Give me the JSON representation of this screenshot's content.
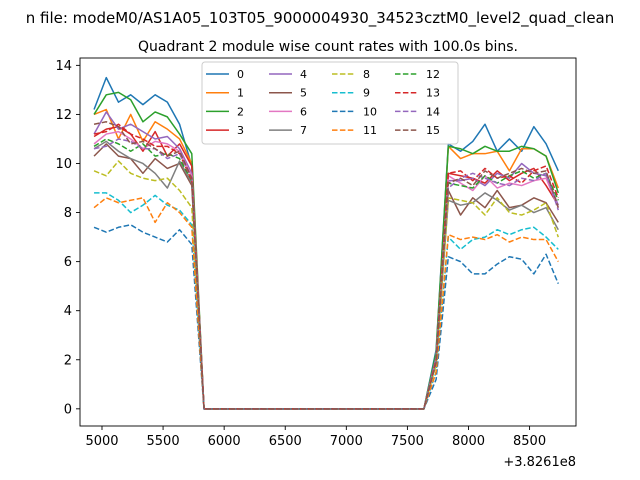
{
  "suptitle": "n file: modeM0/AS1A05_103T05_9000004930_34523cztM0_level2_quad_clean",
  "chart_data": {
    "type": "line",
    "title": "Quadrant 2 module wise count rates with 100.0s bins.",
    "xlabel": "",
    "ylabel": "",
    "x_offset_label": "+3.8261e8",
    "xlim": [
      4820,
      8880
    ],
    "ylim": [
      -0.7,
      14.3
    ],
    "xticks": [
      5000,
      5500,
      6000,
      6500,
      7000,
      7500,
      8000,
      8500
    ],
    "yticks": [
      0,
      2,
      4,
      6,
      8,
      10,
      12,
      14
    ],
    "grid": false,
    "legend": {
      "placement": "top-center",
      "columns": 4
    },
    "x": [
      4935,
      5035,
      5135,
      5235,
      5335,
      5435,
      5535,
      5635,
      5735,
      5835,
      5935,
      6035,
      6135,
      6235,
      6335,
      6435,
      6535,
      6635,
      6735,
      6835,
      6935,
      7035,
      7135,
      7235,
      7335,
      7435,
      7535,
      7635,
      7735,
      7835,
      7935,
      8035,
      8135,
      8235,
      8335,
      8435,
      8535,
      8635,
      8735
    ],
    "series": [
      {
        "name": "0",
        "color": "#1f77b4",
        "dash": "solid",
        "values": [
          12.2,
          13.5,
          12.5,
          12.8,
          12.4,
          12.8,
          12.5,
          11.6,
          9.9,
          0,
          0,
          0,
          0,
          0,
          0,
          0,
          0,
          0,
          0,
          0,
          0,
          0,
          0,
          0,
          0,
          0,
          0,
          0,
          2.4,
          10.8,
          10.5,
          10.9,
          11.6,
          10.5,
          11.0,
          10.5,
          11.5,
          10.8,
          9.7
        ]
      },
      {
        "name": "1",
        "color": "#ff7f0e",
        "dash": "solid",
        "values": [
          12.0,
          12.2,
          11.0,
          12.0,
          10.9,
          11.7,
          11.4,
          11.0,
          10.0,
          0,
          0,
          0,
          0,
          0,
          0,
          0,
          0,
          0,
          0,
          0,
          0,
          0,
          0,
          0,
          0,
          0,
          0,
          0,
          2.2,
          10.7,
          10.2,
          10.4,
          10.4,
          10.5,
          9.7,
          10.6,
          10.6,
          10.3,
          9.0
        ]
      },
      {
        "name": "2",
        "color": "#2ca02c",
        "dash": "solid",
        "values": [
          12.0,
          12.8,
          12.9,
          12.6,
          11.7,
          12.1,
          11.9,
          11.2,
          10.4,
          0,
          0,
          0,
          0,
          0,
          0,
          0,
          0,
          0,
          0,
          0,
          0,
          0,
          0,
          0,
          0,
          0,
          0,
          0,
          2.3,
          10.7,
          10.6,
          10.4,
          10.7,
          10.5,
          10.5,
          10.7,
          10.6,
          10.3,
          8.8
        ]
      },
      {
        "name": "3",
        "color": "#d62728",
        "dash": "solid",
        "values": [
          11.1,
          11.4,
          11.5,
          11.2,
          10.5,
          11.3,
          10.3,
          10.8,
          9.9,
          0,
          0,
          0,
          0,
          0,
          0,
          0,
          0,
          0,
          0,
          0,
          0,
          0,
          0,
          0,
          0,
          0,
          0,
          0,
          2.0,
          9.6,
          9.5,
          9.4,
          9.2,
          9.7,
          9.3,
          9.6,
          9.8,
          9.1,
          8.3
        ]
      },
      {
        "name": "4",
        "color": "#9467bd",
        "dash": "solid",
        "values": [
          11.2,
          12.1,
          11.4,
          11.6,
          11.3,
          11.0,
          11.1,
          10.6,
          9.6,
          0,
          0,
          0,
          0,
          0,
          0,
          0,
          0,
          0,
          0,
          0,
          0,
          0,
          0,
          0,
          0,
          0,
          0,
          0,
          2.1,
          9.3,
          9.3,
          9.4,
          9.1,
          9.6,
          9.4,
          10.0,
          9.6,
          9.5,
          8.3
        ]
      },
      {
        "name": "5",
        "color": "#8c564b",
        "dash": "solid",
        "values": [
          10.3,
          10.8,
          10.3,
          10.2,
          9.6,
          10.2,
          9.8,
          10.0,
          9.1,
          0,
          0,
          0,
          0,
          0,
          0,
          0,
          0,
          0,
          0,
          0,
          0,
          0,
          0,
          0,
          0,
          0,
          0,
          0,
          1.9,
          8.9,
          7.9,
          8.6,
          8.2,
          8.9,
          8.2,
          8.3,
          8.6,
          8.4,
          7.6
        ]
      },
      {
        "name": "6",
        "color": "#e377c2",
        "dash": "solid",
        "values": [
          10.8,
          11.2,
          11.3,
          11.0,
          10.6,
          10.9,
          10.8,
          10.5,
          9.5,
          0,
          0,
          0,
          0,
          0,
          0,
          0,
          0,
          0,
          0,
          0,
          0,
          0,
          0,
          0,
          0,
          0,
          0,
          0,
          2.0,
          9.5,
          9.2,
          8.9,
          9.5,
          9.0,
          9.2,
          9.1,
          9.3,
          9.4,
          8.2
        ]
      },
      {
        "name": "7",
        "color": "#7f7f7f",
        "dash": "solid",
        "values": [
          10.6,
          10.9,
          10.5,
          10.2,
          10.0,
          9.6,
          9.0,
          10.1,
          9.2,
          0,
          0,
          0,
          0,
          0,
          0,
          0,
          0,
          0,
          0,
          0,
          0,
          0,
          0,
          0,
          0,
          0,
          0,
          0,
          1.9,
          8.5,
          8.3,
          8.4,
          8.8,
          8.5,
          8.1,
          8.3,
          8.0,
          8.2,
          7.3
        ]
      },
      {
        "name": "8",
        "color": "#bcbd22",
        "dash": "dashed",
        "values": [
          9.7,
          9.5,
          10.1,
          9.6,
          9.4,
          9.3,
          9.4,
          8.9,
          8.2,
          0,
          0,
          0,
          0,
          0,
          0,
          0,
          0,
          0,
          0,
          0,
          0,
          0,
          0,
          0,
          0,
          0,
          0,
          0,
          1.8,
          8.6,
          8.5,
          8.4,
          7.9,
          8.6,
          8.0,
          7.9,
          8.1,
          8.4,
          7.0
        ]
      },
      {
        "name": "9",
        "color": "#17becf",
        "dash": "dashed",
        "values": [
          8.8,
          8.8,
          8.5,
          8.0,
          8.3,
          8.7,
          8.3,
          8.1,
          7.5,
          0,
          0,
          0,
          0,
          0,
          0,
          0,
          0,
          0,
          0,
          0,
          0,
          0,
          0,
          0,
          0,
          0,
          0,
          0,
          1.5,
          7.0,
          6.5,
          6.9,
          7.0,
          7.3,
          7.1,
          7.3,
          7.4,
          7.0,
          6.5
        ]
      },
      {
        "name": "10",
        "color": "#1f77b4",
        "dash": "dashed",
        "values": [
          7.4,
          7.2,
          7.4,
          7.5,
          7.2,
          7.0,
          6.8,
          7.3,
          6.7,
          0,
          0,
          0,
          0,
          0,
          0,
          0,
          0,
          0,
          0,
          0,
          0,
          0,
          0,
          0,
          0,
          0,
          0,
          0,
          1.2,
          6.2,
          6.0,
          5.5,
          5.5,
          5.9,
          6.2,
          6.1,
          5.5,
          6.3,
          5.1
        ]
      },
      {
        "name": "11",
        "color": "#ff7f0e",
        "dash": "dashed",
        "values": [
          8.2,
          8.6,
          8.4,
          8.5,
          8.6,
          7.6,
          8.4,
          8.0,
          7.4,
          0,
          0,
          0,
          0,
          0,
          0,
          0,
          0,
          0,
          0,
          0,
          0,
          0,
          0,
          0,
          0,
          0,
          0,
          0,
          1.5,
          7.1,
          6.9,
          7.0,
          6.9,
          7.1,
          6.8,
          7.0,
          6.9,
          6.9,
          6.0
        ]
      },
      {
        "name": "12",
        "color": "#2ca02c",
        "dash": "dashed",
        "values": [
          10.7,
          11.0,
          10.8,
          10.5,
          10.8,
          10.3,
          10.4,
          10.2,
          9.3,
          0,
          0,
          0,
          0,
          0,
          0,
          0,
          0,
          0,
          0,
          0,
          0,
          0,
          0,
          0,
          0,
          0,
          0,
          0,
          1.9,
          9.2,
          9.1,
          9.0,
          9.5,
          9.2,
          9.5,
          9.7,
          9.4,
          9.6,
          8.5
        ]
      },
      {
        "name": "13",
        "color": "#d62728",
        "dash": "dashed",
        "values": [
          11.2,
          11.3,
          11.6,
          11.2,
          11.0,
          10.7,
          10.7,
          10.4,
          9.3,
          0,
          0,
          0,
          0,
          0,
          0,
          0,
          0,
          0,
          0,
          0,
          0,
          0,
          0,
          0,
          0,
          0,
          0,
          0,
          2.0,
          9.6,
          9.7,
          9.3,
          9.8,
          9.4,
          9.5,
          9.2,
          9.7,
          9.9,
          8.6
        ]
      },
      {
        "name": "14",
        "color": "#9467bd",
        "dash": "dashed",
        "values": [
          10.6,
          10.7,
          11.0,
          10.9,
          10.6,
          10.6,
          10.2,
          10.4,
          9.4,
          0,
          0,
          0,
          0,
          0,
          0,
          0,
          0,
          0,
          0,
          0,
          0,
          0,
          0,
          0,
          0,
          0,
          0,
          0,
          1.9,
          9.0,
          9.4,
          9.6,
          9.4,
          9.2,
          9.1,
          9.4,
          9.3,
          9.6,
          8.1
        ]
      },
      {
        "name": "15",
        "color": "#8c564b",
        "dash": "dashed",
        "values": [
          11.6,
          11.7,
          11.5,
          10.8,
          10.9,
          10.6,
          10.3,
          10.5,
          9.4,
          0,
          0,
          0,
          0,
          0,
          0,
          0,
          0,
          0,
          0,
          0,
          0,
          0,
          0,
          0,
          0,
          0,
          0,
          0,
          1.9,
          9.2,
          9.4,
          9.1,
          9.7,
          9.4,
          9.6,
          9.8,
          9.6,
          9.7,
          8.2
        ]
      }
    ]
  }
}
